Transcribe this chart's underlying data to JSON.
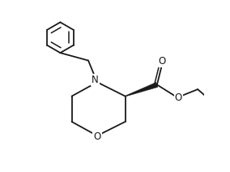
{
  "bg_color": "#ffffff",
  "line_color": "#1a1a1a",
  "line_width": 1.3,
  "font_size_atom": 8.5,
  "figsize": [
    2.84,
    2.12
  ],
  "dpi": 100,
  "xlim": [
    -2.8,
    4.2
  ],
  "ylim": [
    -3.5,
    3.2
  ]
}
